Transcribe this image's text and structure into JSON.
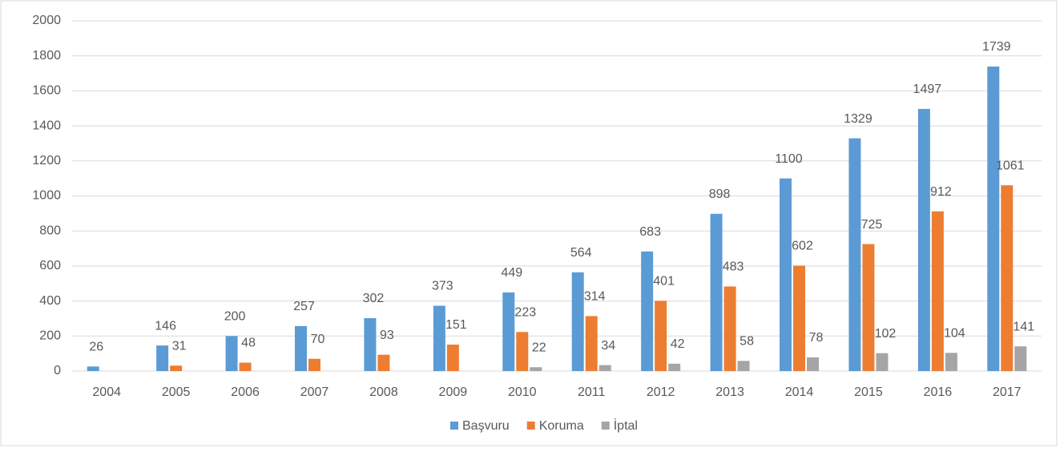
{
  "chart_data": {
    "type": "bar",
    "categories": [
      "2004",
      "2005",
      "2006",
      "2007",
      "2008",
      "2009",
      "2010",
      "2011",
      "2012",
      "2013",
      "2014",
      "2015",
      "2016",
      "2017"
    ],
    "series": [
      {
        "name": "Başvuru",
        "color": "#5b9bd5",
        "values": [
          26,
          146,
          200,
          257,
          302,
          373,
          449,
          564,
          683,
          898,
          1100,
          1329,
          1497,
          1739
        ]
      },
      {
        "name": "Koruma",
        "color": "#ed7d31",
        "values": [
          null,
          31,
          48,
          70,
          93,
          151,
          223,
          314,
          401,
          483,
          602,
          725,
          912,
          1061
        ]
      },
      {
        "name": "İptal",
        "color": "#a5a5a5",
        "values": [
          null,
          null,
          null,
          null,
          null,
          null,
          22,
          34,
          42,
          58,
          78,
          102,
          104,
          141
        ]
      }
    ],
    "ylim": [
      0,
      2000
    ],
    "yticks": [
      0,
      200,
      400,
      600,
      800,
      1000,
      1200,
      1400,
      1600,
      1800,
      2000
    ],
    "grid": true,
    "legend": "bottom",
    "data_labels": true
  }
}
